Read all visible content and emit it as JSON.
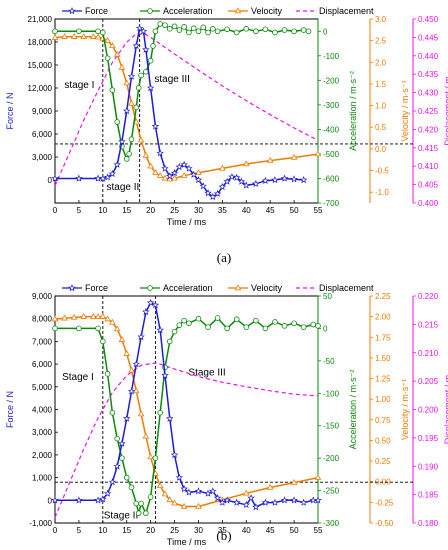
{
  "chart_data": [
    {
      "type": "line",
      "caption": "(a)",
      "legend": [
        "Force",
        "Acceleration",
        "Velocity",
        "Displacement"
      ],
      "legend_placement": "top",
      "colors": {
        "force": "#1c1cd6",
        "acceleration": "#0a8a0a",
        "velocity": "#f07b00",
        "displacement": "#ee10ee"
      },
      "xlabel": "Time / ms",
      "xlim": [
        0,
        55
      ],
      "xticks": [
        "0",
        "5",
        "10",
        "15",
        "20",
        "25",
        "30",
        "35",
        "40",
        "45",
        "50",
        "55"
      ],
      "axes": {
        "force": {
          "label": "Force / N",
          "lim": [
            -3000,
            21000
          ],
          "ticks": [
            "0",
            "3,000",
            "6,000",
            "9,000",
            "12,000",
            "15,000",
            "18,000",
            "21,000"
          ]
        },
        "acceleration": {
          "label": "Acceleration / m·s⁻²",
          "lim": [
            -700,
            50
          ],
          "ticks": [
            "0",
            "-100",
            "-200",
            "-300",
            "-400",
            "-500",
            "-600",
            "-700"
          ]
        },
        "velocity": {
          "label": "Velocity / m·s⁻¹",
          "lim": [
            -1.25,
            3.0
          ],
          "ticks": [
            "-1.0",
            "-0.5",
            "0.0",
            "0.5",
            "1.0",
            "1.5",
            "2.0",
            "2.5",
            "3.0"
          ]
        },
        "displacement": {
          "label": "Displacement / m",
          "lim": [
            0.4,
            0.45
          ],
          "ticks": [
            "0.400",
            "0.405",
            "0.410",
            "0.415",
            "0.420",
            "0.425",
            "0.430",
            "0.435",
            "0.440",
            "0.445",
            "0.450"
          ]
        }
      },
      "annotations": [
        {
          "text": "stage I",
          "x": 5.1,
          "force": 12000
        },
        {
          "text": "stage II",
          "x": 14.2,
          "force": -1300
        },
        {
          "text": "stage III",
          "x": 24.5,
          "force": 12800
        }
      ],
      "vlines": [
        10,
        17.7
      ],
      "hline_force": 4700,
      "series": [
        {
          "name": "Force",
          "key": "force",
          "marker": "star",
          "x": [
            0,
            5,
            9,
            10,
            11,
            12,
            13,
            14,
            15,
            16,
            17,
            17.7,
            18.5,
            19,
            20,
            21,
            22,
            23,
            24,
            25,
            26,
            27,
            28,
            29,
            30,
            31,
            32,
            33,
            34,
            35,
            36,
            37,
            38,
            39,
            40,
            42,
            44,
            46,
            48,
            50,
            52
          ],
          "y": [
            200,
            200,
            200,
            200,
            350,
            800,
            2000,
            5000,
            9000,
            13500,
            17500,
            19800,
            19400,
            17000,
            12000,
            7000,
            3500,
            1500,
            500,
            900,
            1700,
            2000,
            1500,
            700,
            0,
            -800,
            -1700,
            -2200,
            -1800,
            -900,
            -200,
            400,
            300,
            -200,
            -700,
            -500,
            -100,
            0,
            200,
            100,
            0
          ]
        },
        {
          "name": "Acceleration",
          "key": "acceleration",
          "marker": "circle",
          "x": [
            0,
            5,
            9,
            10,
            11,
            12,
            13,
            14,
            15,
            15.5,
            16,
            17,
            17.5,
            18,
            19,
            20,
            20.5,
            21,
            22,
            23,
            24,
            25,
            26,
            27,
            28,
            29,
            30,
            31,
            32,
            33,
            34,
            36,
            38,
            40,
            42,
            44,
            46,
            48,
            50,
            52,
            53
          ],
          "y": [
            0,
            0,
            0,
            -5,
            -110,
            -240,
            -370,
            -470,
            -520,
            -500,
            -440,
            -310,
            -230,
            -180,
            -165,
            -120,
            -60,
            0,
            30,
            25,
            10,
            20,
            5,
            18,
            -5,
            12,
            0,
            16,
            -5,
            10,
            0,
            8,
            -5,
            10,
            0,
            8,
            -5,
            5,
            0,
            5,
            0
          ]
        },
        {
          "name": "Velocity",
          "key": "velocity",
          "marker": "triangle",
          "x": [
            0,
            2,
            4,
            6,
            8,
            9,
            10,
            11,
            12,
            13,
            14,
            15,
            16,
            17,
            18,
            19,
            20,
            21,
            22,
            23,
            24,
            25,
            27,
            30,
            35,
            40,
            45,
            50,
            55
          ],
          "y": [
            2.57,
            2.59,
            2.59,
            2.59,
            2.59,
            2.58,
            2.55,
            2.5,
            2.38,
            2.18,
            1.88,
            1.52,
            1.05,
            0.62,
            0.2,
            -0.15,
            -0.4,
            -0.55,
            -0.62,
            -0.68,
            -0.7,
            -0.68,
            -0.62,
            -0.55,
            -0.45,
            -0.35,
            -0.27,
            -0.2,
            -0.12
          ]
        },
        {
          "name": "Displacement",
          "key": "displacement",
          "marker": "none",
          "x": [
            0,
            3,
            6,
            9,
            12,
            15,
            17,
            19,
            20,
            22,
            25,
            30,
            35,
            40,
            45,
            50,
            55
          ],
          "y": [
            0.4047,
            0.4135,
            0.4225,
            0.4305,
            0.4382,
            0.4437,
            0.446,
            0.4458,
            0.445,
            0.4432,
            0.4405,
            0.4361,
            0.4318,
            0.4278,
            0.424,
            0.4204,
            0.417
          ]
        }
      ]
    },
    {
      "type": "line",
      "caption": "(b)",
      "legend": [
        "Force",
        "Acceleration",
        "Velocity",
        "Displacement"
      ],
      "legend_placement": "top",
      "colors": {
        "force": "#1c1cd6",
        "acceleration": "#0a8a0a",
        "velocity": "#f07b00",
        "displacement": "#ee10ee"
      },
      "xlabel": "Time / ms",
      "xlim": [
        0,
        55
      ],
      "xticks": [
        "0",
        "5",
        "10",
        "15",
        "20",
        "25",
        "30",
        "35",
        "40",
        "45",
        "50",
        "55"
      ],
      "axes": {
        "force": {
          "label": "Force / N",
          "lim": [
            -1000,
            9000
          ],
          "ticks": [
            "-1,000",
            "0",
            "1,000",
            "2,000",
            "3,000",
            "4,000",
            "5,000",
            "6,000",
            "7,000",
            "8,000",
            "9,000"
          ]
        },
        "acceleration": {
          "label": "Acceleration / m·s⁻²",
          "lim": [
            -300,
            50
          ],
          "ticks": [
            "50",
            "0",
            "-50",
            "-100",
            "-150",
            "-200",
            "-250",
            "-300"
          ]
        },
        "velocity": {
          "label": "Velocity / m·s⁻¹",
          "lim": [
            -0.5,
            2.25
          ],
          "ticks": [
            "-0.50",
            "-0.25",
            "0.00",
            "0.25",
            "0.50",
            "0.75",
            "1.00",
            "1.25",
            "1.50",
            "1.75",
            "2.00",
            "2.25"
          ]
        },
        "displacement": {
          "label": "Displacement / m",
          "lim": [
            0.18,
            0.22
          ],
          "ticks": [
            "0.180",
            "0.185",
            "0.190",
            "0.195",
            "0.200",
            "0.205",
            "0.210",
            "0.215",
            "0.220"
          ]
        }
      },
      "annotations": [
        {
          "text": "Stage I",
          "x": 4.8,
          "force": 5300
        },
        {
          "text": "Stage II",
          "x": 13.8,
          "force": -800
        },
        {
          "text": "Stage III",
          "x": 31.8,
          "force": 5500
        }
      ],
      "vlines": [
        10,
        21
      ],
      "hline_force": 800,
      "series": [
        {
          "name": "Force",
          "key": "force",
          "marker": "star",
          "x": [
            0,
            5,
            9,
            10,
            11,
            12,
            13,
            14,
            15,
            16,
            17,
            18,
            19,
            20,
            21,
            22,
            23,
            24,
            25,
            26,
            27,
            28,
            30,
            32,
            33,
            34,
            35,
            36,
            38,
            40,
            41,
            42,
            44,
            46,
            48,
            50,
            52,
            54,
            55
          ],
          "y": [
            0,
            0,
            0,
            50,
            300,
            800,
            1500,
            2500,
            3600,
            4800,
            6000,
            7200,
            8300,
            8700,
            8600,
            7500,
            5500,
            3600,
            2000,
            1000,
            500,
            350,
            400,
            300,
            400,
            100,
            -100,
            0,
            -100,
            -200,
            100,
            -300,
            -100,
            -100,
            0,
            0,
            -100,
            0,
            0
          ]
        },
        {
          "name": "Acceleration",
          "key": "acceleration",
          "marker": "circle",
          "x": [
            0,
            5,
            9,
            10,
            11,
            12,
            13,
            14,
            15,
            16,
            17,
            17.5,
            18,
            19,
            20,
            21,
            22,
            23,
            24,
            25,
            26,
            27,
            28,
            30,
            32,
            34,
            36,
            38,
            40,
            42,
            44,
            46,
            48,
            50,
            52,
            54,
            55
          ],
          "y": [
            0,
            0,
            0,
            -20,
            -70,
            -130,
            -170,
            -200,
            -230,
            -245,
            -270,
            -285,
            -270,
            -285,
            -260,
            -200,
            -130,
            -60,
            -20,
            -5,
            5,
            12,
            8,
            15,
            2,
            16,
            0,
            14,
            2,
            12,
            0,
            10,
            4,
            8,
            2,
            6,
            4
          ]
        },
        {
          "name": "Velocity",
          "key": "velocity",
          "marker": "triangle",
          "x": [
            0,
            2,
            4,
            6,
            8,
            9,
            10,
            11,
            12,
            13,
            14,
            15,
            16,
            17,
            18,
            19,
            20,
            21,
            22,
            23,
            24,
            25,
            27,
            30,
            35,
            40,
            45,
            50,
            55
          ],
          "y": [
            1.97,
            1.98,
            1.99,
            2.0,
            2.0,
            2.0,
            2.0,
            1.97,
            1.93,
            1.85,
            1.72,
            1.55,
            1.35,
            1.1,
            0.82,
            0.55,
            0.3,
            0.1,
            -0.05,
            -0.15,
            -0.22,
            -0.26,
            -0.3,
            -0.3,
            -0.22,
            -0.14,
            -0.07,
            -0.01,
            0.05
          ]
        },
        {
          "name": "Displacement",
          "key": "displacement",
          "marker": "none",
          "x": [
            0,
            3,
            6,
            9,
            12,
            15,
            18,
            21,
            22,
            24,
            27,
            30,
            35,
            40,
            45,
            50,
            55
          ],
          "y": [
            0.181,
            0.187,
            0.193,
            0.1985,
            0.203,
            0.206,
            0.2078,
            0.2082,
            0.208,
            0.2074,
            0.2066,
            0.2058,
            0.2048,
            0.204,
            0.2033,
            0.2027,
            0.2024
          ]
        }
      ]
    }
  ]
}
